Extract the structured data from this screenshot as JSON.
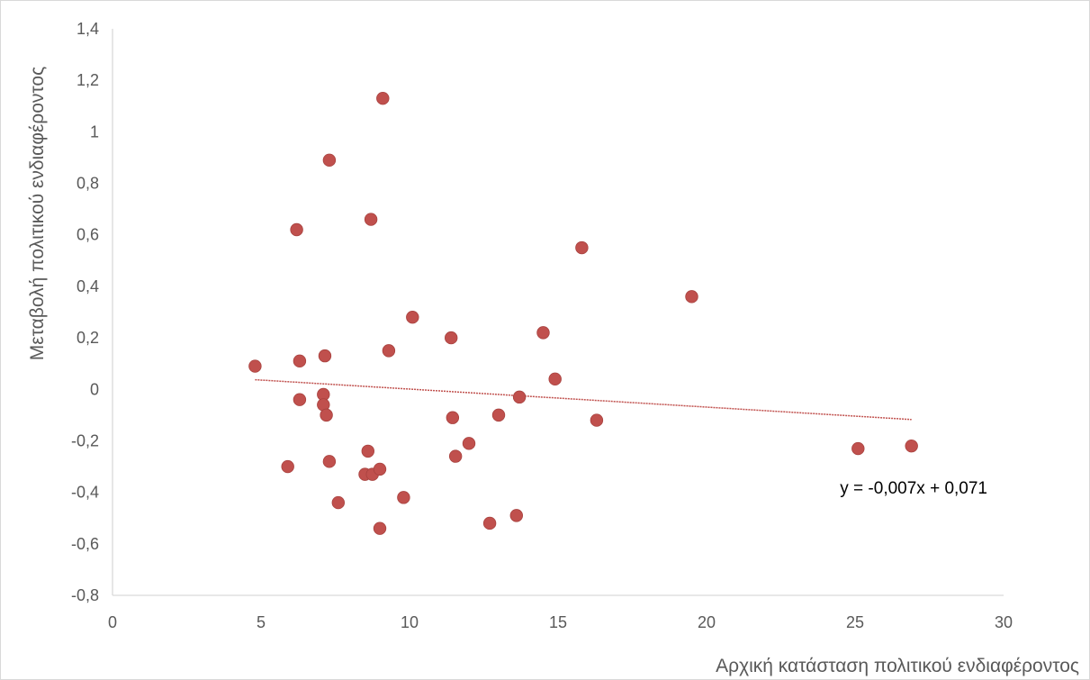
{
  "chart_data": {
    "type": "scatter",
    "title": "",
    "xlabel": "Αρχική κατάσταση πολιτικού ενδιαφέροντος",
    "ylabel": "Μεταβολή πολιτικού ενδιαφέροντος",
    "xlim": [
      0,
      30
    ],
    "ylim": [
      -0.8,
      1.4
    ],
    "x_ticks": [
      "0",
      "5",
      "10",
      "15",
      "20",
      "25",
      "30"
    ],
    "y_ticks": [
      "1,4",
      "1,2",
      "1",
      "0,8",
      "0,6",
      "0,4",
      "0,2",
      "0",
      "-0,2",
      "-0,4",
      "-0,6",
      "-0,8"
    ],
    "grid": false,
    "legend": "none",
    "marker_color": "#c0504d",
    "trendline": {
      "type": "linear",
      "slope": -0.007,
      "intercept": 0.071,
      "x_range": [
        4.8,
        26.9
      ],
      "color": "#c0504d",
      "equation_label": "y = -0,007x + 0,071"
    },
    "points": [
      {
        "x": 4.8,
        "y": 0.09
      },
      {
        "x": 5.9,
        "y": -0.3
      },
      {
        "x": 6.2,
        "y": 0.62
      },
      {
        "x": 6.3,
        "y": 0.11
      },
      {
        "x": 6.3,
        "y": -0.04
      },
      {
        "x": 7.1,
        "y": -0.02
      },
      {
        "x": 7.1,
        "y": -0.06
      },
      {
        "x": 7.15,
        "y": 0.13
      },
      {
        "x": 7.2,
        "y": -0.1
      },
      {
        "x": 7.3,
        "y": 0.89
      },
      {
        "x": 7.3,
        "y": -0.28
      },
      {
        "x": 7.6,
        "y": -0.44
      },
      {
        "x": 8.5,
        "y": -0.33
      },
      {
        "x": 8.6,
        "y": -0.24
      },
      {
        "x": 8.7,
        "y": 0.66
      },
      {
        "x": 8.75,
        "y": -0.33
      },
      {
        "x": 9.0,
        "y": -0.31
      },
      {
        "x": 9.0,
        "y": -0.54
      },
      {
        "x": 9.1,
        "y": 1.13
      },
      {
        "x": 9.3,
        "y": 0.15
      },
      {
        "x": 9.8,
        "y": -0.42
      },
      {
        "x": 10.1,
        "y": 0.28
      },
      {
        "x": 11.4,
        "y": 0.2
      },
      {
        "x": 11.45,
        "y": -0.11
      },
      {
        "x": 11.55,
        "y": -0.26
      },
      {
        "x": 12.0,
        "y": -0.21
      },
      {
        "x": 12.7,
        "y": -0.52
      },
      {
        "x": 13.0,
        "y": -0.1
      },
      {
        "x": 13.6,
        "y": -0.49
      },
      {
        "x": 13.7,
        "y": -0.03
      },
      {
        "x": 14.5,
        "y": 0.22
      },
      {
        "x": 14.9,
        "y": 0.04
      },
      {
        "x": 15.8,
        "y": 0.55
      },
      {
        "x": 16.3,
        "y": -0.12
      },
      {
        "x": 19.5,
        "y": 0.36
      },
      {
        "x": 25.1,
        "y": -0.23
      },
      {
        "x": 26.9,
        "y": -0.22
      }
    ]
  }
}
